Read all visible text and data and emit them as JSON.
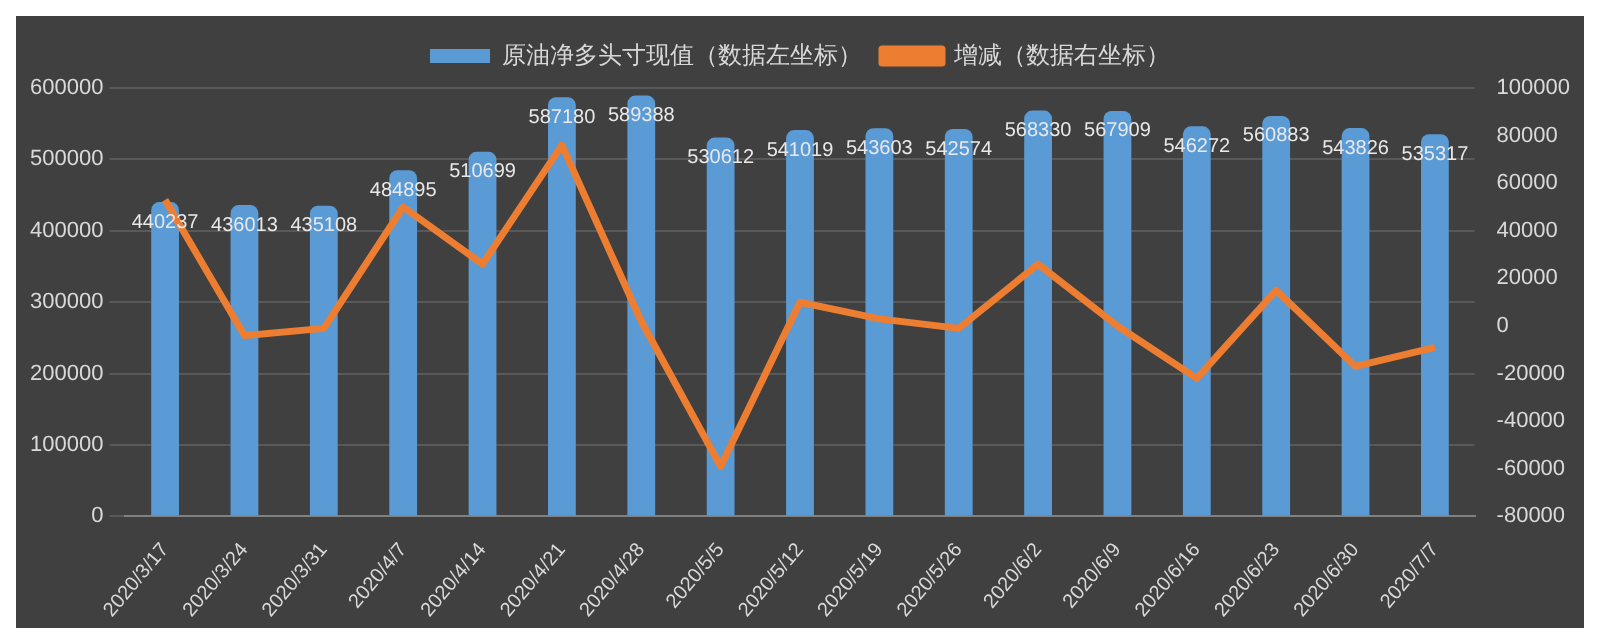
{
  "chart_data": {
    "type": "bar",
    "categories": [
      "2020/3/17",
      "2020/3/24",
      "2020/3/31",
      "2020/4/7",
      "2020/4/14",
      "2020/4/21",
      "2020/4/28",
      "2020/5/5",
      "2020/5/12",
      "2020/5/19",
      "2020/5/26",
      "2020/6/2",
      "2020/6/9",
      "2020/6/16",
      "2020/6/23",
      "2020/6/30",
      "2020/7/7"
    ],
    "series": [
      {
        "name": "原油净多头寸现值（数据左坐标）",
        "color": "#5b9bd5",
        "values": [
          440237,
          436013,
          435108,
          484895,
          510699,
          587180,
          589388,
          530612,
          541019,
          543603,
          542574,
          568330,
          567909,
          546272,
          560883,
          543826,
          535317
        ],
        "value_labels": [
          "440237",
          "436013",
          "435108",
          "484895",
          "510699",
          "587180",
          "589388",
          "530612",
          "541019",
          "543603",
          "542574",
          "568330",
          "567909",
          "546272",
          "560883",
          "543826",
          "535317"
        ]
      },
      {
        "name": "增减（数据右坐标）",
        "type": "line",
        "axis": "y2",
        "color": "#ed7d31",
        "values": [
          53000,
          -4000,
          -1000,
          50000,
          26000,
          76000,
          2000,
          -59000,
          10000,
          3000,
          -1000,
          26000,
          0,
          -22000,
          15000,
          -17000,
          -9000
        ]
      }
    ],
    "ylim": [
      0,
      600000
    ],
    "yticks": [
      0,
      100000,
      200000,
      300000,
      400000,
      500000,
      600000
    ],
    "y2lim": [
      -80000,
      100000
    ],
    "y2ticks": [
      -80000,
      -60000,
      -40000,
      -20000,
      0,
      20000,
      40000,
      60000,
      80000,
      100000
    ],
    "grid": "y",
    "legend": "top",
    "marker": "none",
    "line_style": "solid"
  }
}
